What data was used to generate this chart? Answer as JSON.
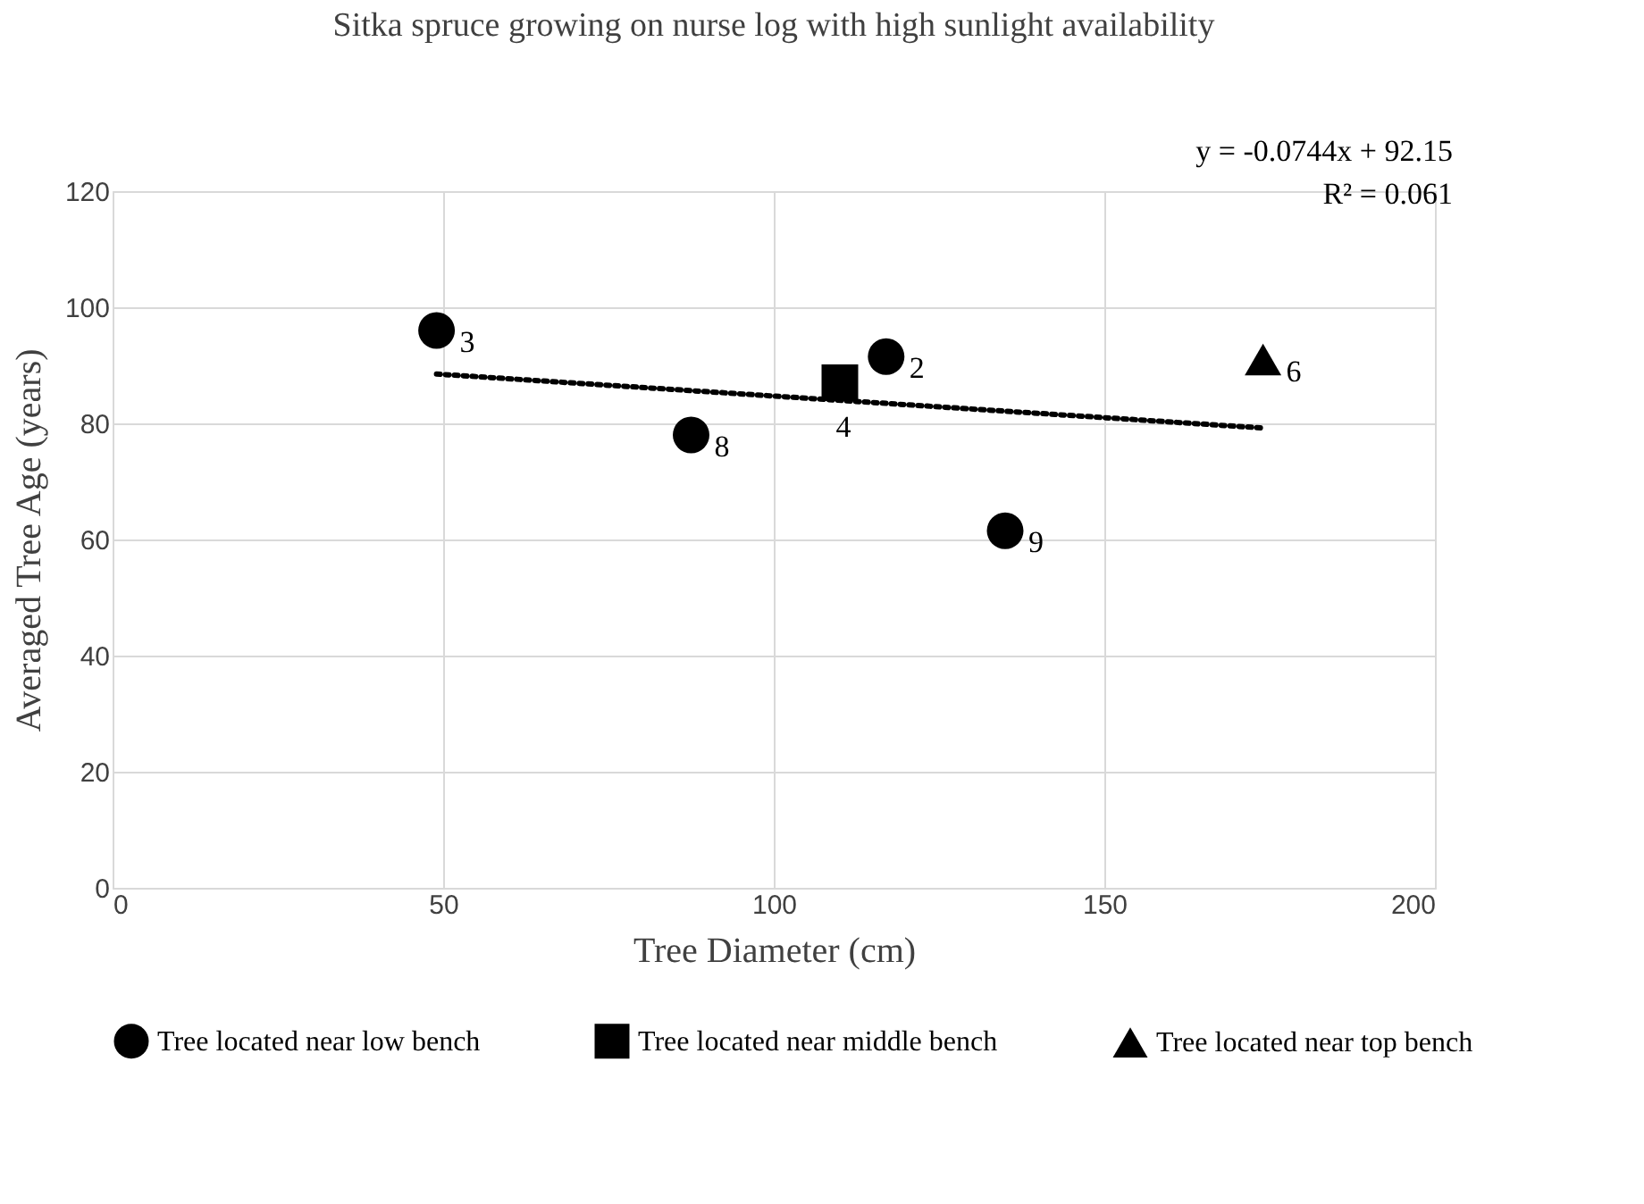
{
  "chart_data": {
    "type": "scatter",
    "title": "Sitka spruce growing on nurse log with high sunlight availability",
    "xlabel": "Tree Diameter (cm)",
    "ylabel": "Averaged Tree Age (years)",
    "xlim": [
      0,
      200
    ],
    "xticks": [
      0,
      50,
      100,
      150,
      200
    ],
    "ylim": [
      0,
      120
    ],
    "yticks": [
      0,
      20,
      40,
      60,
      80,
      100,
      120
    ],
    "grid": true,
    "legend": "bottom",
    "series": [
      {
        "name": "Tree located near low bench",
        "marker": "circle",
        "color": "#000000",
        "x": [
          49,
          117,
          87.5,
          135
        ],
        "values": [
          96,
          91.5,
          78,
          61.5
        ]
      },
      {
        "name": "Tree located near middle bench",
        "marker": "square",
        "color": "#000000",
        "x": [
          110
        ],
        "values": [
          87
        ]
      },
      {
        "name": "Tree located near top bench",
        "marker": "triangle",
        "color": "#000000",
        "x": [
          174
        ],
        "values": [
          91
        ]
      },
      {
        "type": "line",
        "line_style": "dotted",
        "color": "#000000",
        "x": [
          49,
          174
        ],
        "values": [
          88.5,
          79.2
        ]
      }
    ],
    "annotations": [
      "y = -0.0744x + 92.15",
      "R² = 0.061",
      {
        "text": "3",
        "x": 49,
        "y": 96
      },
      {
        "text": "2",
        "x": 117,
        "y": 91.5
      },
      {
        "text": "8",
        "x": 87.5,
        "y": 78
      },
      {
        "text": "9",
        "x": 135,
        "y": 61.5
      },
      {
        "text": "4",
        "x": 110,
        "y": 87
      },
      {
        "text": "6",
        "x": 174,
        "y": 91
      }
    ]
  }
}
